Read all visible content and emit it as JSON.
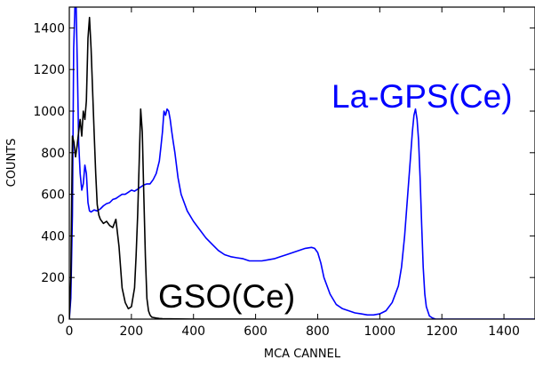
{
  "chart_data": {
    "type": "line",
    "title": "",
    "xlabel": "MCA CANNEL",
    "ylabel": "COUNTS",
    "xlim": [
      0,
      1500
    ],
    "ylim": [
      0,
      1500
    ],
    "xticks": [
      0,
      200,
      400,
      600,
      800,
      1000,
      1200,
      1400
    ],
    "yticks": [
      0,
      200,
      400,
      600,
      800,
      1000,
      1200,
      1400
    ],
    "grid": false,
    "legend": "none",
    "series": [
      {
        "name": "La-GPS(Ce)",
        "color": "#0000ff",
        "x": [
          0,
          5,
          10,
          14,
          18,
          22,
          26,
          30,
          35,
          40,
          45,
          50,
          55,
          60,
          65,
          70,
          75,
          80,
          90,
          100,
          110,
          120,
          130,
          140,
          150,
          160,
          170,
          180,
          190,
          200,
          210,
          220,
          230,
          240,
          250,
          260,
          270,
          280,
          290,
          295,
          300,
          305,
          310,
          315,
          320,
          325,
          330,
          335,
          340,
          350,
          360,
          380,
          400,
          420,
          440,
          460,
          480,
          500,
          520,
          540,
          560,
          580,
          600,
          620,
          640,
          660,
          680,
          700,
          720,
          740,
          760,
          780,
          790,
          800,
          810,
          820,
          840,
          860,
          880,
          900,
          920,
          940,
          960,
          980,
          1000,
          1020,
          1040,
          1060,
          1070,
          1080,
          1090,
          1100,
          1105,
          1110,
          1115,
          1120,
          1125,
          1130,
          1135,
          1140,
          1145,
          1150,
          1160,
          1170,
          1180,
          1200,
          1250,
          1300,
          1350,
          1400,
          1450,
          1500
        ],
        "y": [
          0,
          100,
          500,
          1300,
          1500,
          1500,
          1200,
          850,
          700,
          620,
          650,
          740,
          700,
          560,
          520,
          515,
          520,
          525,
          520,
          530,
          545,
          555,
          560,
          575,
          580,
          590,
          600,
          600,
          610,
          620,
          615,
          625,
          635,
          645,
          650,
          650,
          670,
          700,
          760,
          830,
          900,
          1000,
          980,
          1010,
          1000,
          960,
          900,
          850,
          800,
          680,
          600,
          520,
          470,
          430,
          390,
          360,
          330,
          310,
          300,
          295,
          290,
          280,
          280,
          280,
          285,
          290,
          300,
          310,
          320,
          330,
          340,
          345,
          340,
          320,
          270,
          200,
          120,
          70,
          50,
          40,
          30,
          25,
          20,
          20,
          25,
          40,
          80,
          160,
          250,
          400,
          600,
          800,
          900,
          980,
          1010,
          960,
          860,
          680,
          450,
          250,
          120,
          60,
          15,
          5,
          0,
          0,
          0,
          0,
          0,
          0,
          0,
          0
        ]
      },
      {
        "name": "GSO(Ce)",
        "color": "#000000",
        "x": [
          0,
          5,
          10,
          15,
          20,
          25,
          30,
          35,
          40,
          45,
          50,
          55,
          60,
          65,
          70,
          75,
          80,
          85,
          90,
          95,
          100,
          110,
          120,
          130,
          140,
          150,
          160,
          170,
          180,
          190,
          200,
          210,
          215,
          220,
          225,
          230,
          235,
          240,
          245,
          250,
          255,
          260,
          265,
          270,
          280,
          290,
          300,
          350,
          400,
          450,
          500,
          550,
          600
        ],
        "y": [
          0,
          200,
          880,
          850,
          780,
          830,
          900,
          960,
          880,
          1000,
          960,
          1050,
          1350,
          1450,
          1300,
          1100,
          900,
          700,
          550,
          500,
          480,
          460,
          470,
          450,
          440,
          480,
          350,
          150,
          80,
          50,
          60,
          150,
          300,
          500,
          750,
          1010,
          900,
          600,
          300,
          100,
          40,
          20,
          10,
          8,
          5,
          3,
          2,
          1,
          0,
          0,
          0,
          0,
          0
        ]
      }
    ],
    "annotations": [
      {
        "text": "La-GPS(Ce)",
        "color": "#0000ff",
        "x": 1100,
        "y": 1000
      },
      {
        "text": "GSO(Ce)",
        "color": "#000000",
        "x": 410,
        "y": 140
      }
    ]
  }
}
